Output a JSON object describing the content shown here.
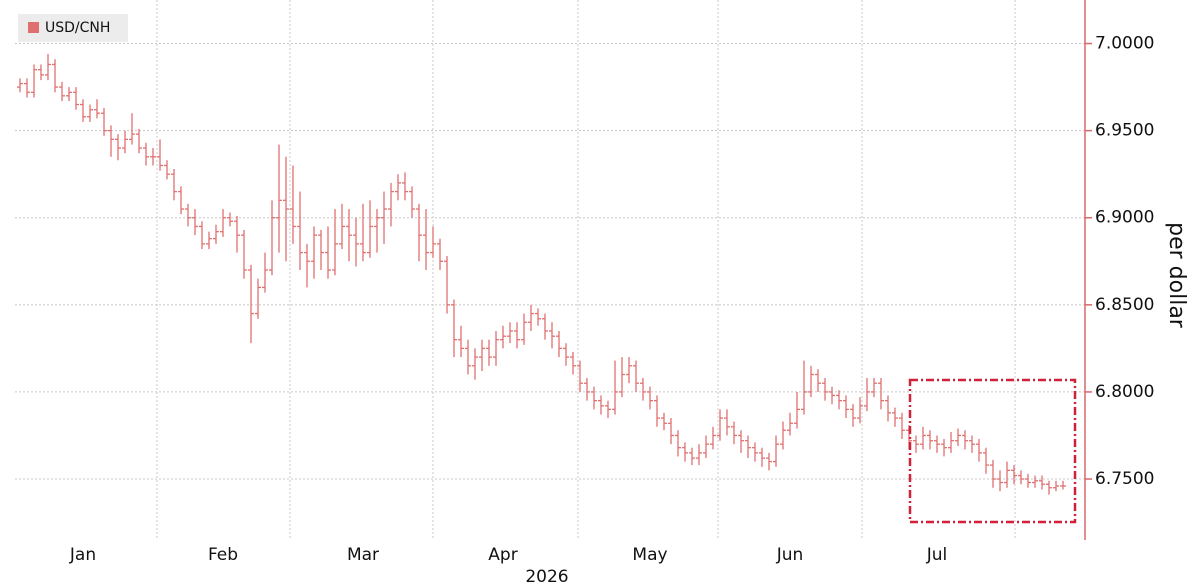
{
  "chart_data": {
    "type": "ohlc",
    "legend": "top-left",
    "x_label": "2026",
    "y_label": "per dollar",
    "ylim": [
      6.715,
      7.025
    ],
    "yticks": [
      {
        "value": 6.75,
        "label": "6.7500"
      },
      {
        "value": 6.8,
        "label": "6.8000"
      },
      {
        "value": 6.85,
        "label": "6.8500"
      },
      {
        "value": 6.9,
        "label": "6.9000"
      },
      {
        "value": 6.95,
        "label": "6.9500"
      },
      {
        "value": 7.0,
        "label": "7.0000"
      }
    ],
    "grid": true,
    "categories": [
      null,
      null,
      null,
      null,
      null,
      null,
      null,
      null,
      null,
      "Jan",
      null,
      null,
      null,
      null,
      null,
      null,
      null,
      null,
      null,
      null,
      null,
      null,
      null,
      null,
      null,
      null,
      null,
      null,
      null,
      "Feb",
      null,
      null,
      null,
      null,
      null,
      null,
      null,
      null,
      null,
      null,
      null,
      null,
      null,
      null,
      null,
      null,
      null,
      null,
      null,
      "Mar",
      null,
      null,
      null,
      null,
      null,
      null,
      null,
      null,
      null,
      null,
      null,
      null,
      null,
      null,
      null,
      null,
      null,
      null,
      null,
      "Apr",
      null,
      null,
      null,
      null,
      null,
      null,
      null,
      null,
      null,
      null,
      null,
      null,
      null,
      null,
      null,
      null,
      null,
      null,
      null,
      null,
      "May",
      null,
      null,
      null,
      null,
      null,
      null,
      null,
      null,
      null,
      null,
      null,
      null,
      null,
      null,
      null,
      null,
      null,
      null,
      null,
      "Jun",
      null,
      null,
      null,
      null,
      null,
      null,
      null,
      null,
      null,
      null,
      null,
      null,
      null,
      null,
      null,
      null,
      null,
      null,
      null,
      null,
      "Jul",
      null,
      null,
      null,
      null,
      null,
      null,
      null,
      null,
      null,
      null,
      null,
      null,
      null,
      null,
      null,
      null,
      null,
      null
    ],
    "series": [
      {
        "name": "USD/CNH",
        "color": "#e07070",
        "open": [
          6.975,
          6.977,
          6.972,
          6.985,
          6.982,
          6.988,
          6.975,
          6.97,
          6.972,
          6.965,
          6.958,
          6.962,
          6.96,
          6.95,
          6.945,
          6.94,
          6.945,
          6.948,
          6.94,
          6.935,
          6.935,
          6.93,
          6.925,
          6.915,
          6.905,
          6.9,
          6.895,
          6.885,
          6.888,
          6.892,
          6.9,
          6.898,
          6.89,
          6.87,
          6.845,
          6.86,
          6.87,
          6.9,
          6.91,
          6.905,
          6.895,
          6.88,
          6.875,
          6.89,
          6.88,
          6.87,
          6.885,
          6.895,
          6.89,
          6.885,
          6.88,
          6.895,
          6.9,
          6.905,
          6.915,
          6.92,
          6.915,
          6.905,
          6.89,
          6.88,
          6.885,
          6.875,
          6.85,
          6.83,
          6.825,
          6.815,
          6.82,
          6.825,
          6.82,
          6.83,
          6.832,
          6.835,
          6.83,
          6.84,
          6.845,
          6.842,
          6.835,
          6.832,
          6.825,
          6.82,
          6.815,
          6.805,
          6.8,
          6.795,
          6.792,
          6.79,
          6.8,
          6.81,
          6.815,
          6.805,
          6.8,
          6.795,
          6.785,
          6.782,
          6.775,
          6.768,
          6.765,
          6.762,
          6.765,
          6.77,
          6.775,
          6.785,
          6.78,
          6.775,
          6.772,
          6.768,
          6.765,
          6.762,
          6.76,
          6.77,
          6.778,
          6.782,
          6.79,
          6.8,
          6.81,
          6.805,
          6.8,
          6.798,
          6.795,
          6.79,
          6.785,
          6.792,
          6.8,
          6.805,
          6.795,
          6.788,
          6.785,
          6.778,
          6.772,
          6.77,
          6.775,
          6.772,
          6.77,
          6.768,
          6.772,
          6.775,
          6.772,
          6.77,
          6.765,
          6.758,
          6.75,
          6.748,
          6.755,
          6.752,
          6.75,
          6.748,
          6.749,
          6.747,
          6.745,
          6.746
        ],
        "high": [
          6.98,
          6.98,
          6.988,
          6.988,
          6.994,
          6.991,
          6.978,
          6.975,
          6.975,
          6.968,
          6.965,
          6.968,
          6.963,
          6.953,
          6.948,
          6.95,
          6.96,
          6.951,
          6.943,
          6.94,
          6.945,
          6.933,
          6.928,
          6.918,
          6.908,
          6.905,
          6.898,
          6.892,
          6.896,
          6.905,
          6.903,
          6.901,
          6.893,
          6.873,
          6.865,
          6.88,
          6.91,
          6.942,
          6.935,
          6.93,
          6.915,
          6.885,
          6.895,
          6.893,
          6.895,
          6.905,
          6.908,
          6.905,
          6.9,
          6.908,
          6.91,
          6.905,
          6.915,
          6.92,
          6.925,
          6.926,
          6.918,
          6.908,
          6.905,
          6.895,
          6.888,
          6.878,
          6.853,
          6.838,
          6.83,
          6.825,
          6.83,
          6.83,
          6.835,
          6.838,
          6.84,
          6.84,
          6.845,
          6.85,
          6.848,
          6.845,
          6.84,
          6.835,
          6.828,
          6.823,
          6.818,
          6.808,
          6.803,
          6.798,
          6.795,
          6.818,
          6.82,
          6.82,
          6.818,
          6.808,
          6.803,
          6.798,
          6.788,
          6.785,
          6.778,
          6.771,
          6.768,
          6.77,
          6.775,
          6.78,
          6.79,
          6.79,
          6.783,
          6.778,
          6.775,
          6.771,
          6.768,
          6.765,
          6.775,
          6.783,
          6.788,
          6.8,
          6.818,
          6.815,
          6.813,
          6.808,
          6.803,
          6.801,
          6.798,
          6.793,
          6.797,
          6.808,
          6.808,
          6.808,
          6.798,
          6.791,
          6.788,
          6.781,
          6.775,
          6.78,
          6.778,
          6.775,
          6.773,
          6.777,
          6.779,
          6.778,
          6.775,
          6.773,
          6.768,
          6.761,
          6.755,
          6.76,
          6.758,
          6.755,
          6.753,
          6.752,
          6.752,
          6.749,
          6.749,
          6.749
        ],
        "low": [
          6.972,
          6.969,
          6.969,
          6.979,
          6.979,
          6.972,
          6.967,
          6.967,
          6.962,
          6.955,
          6.955,
          6.957,
          6.947,
          6.935,
          6.933,
          6.937,
          6.942,
          6.937,
          6.93,
          6.93,
          6.927,
          6.922,
          6.91,
          6.902,
          6.895,
          6.89,
          6.882,
          6.882,
          6.885,
          6.889,
          6.895,
          6.88,
          6.865,
          6.828,
          6.842,
          6.857,
          6.867,
          6.88,
          6.875,
          6.885,
          6.87,
          6.86,
          6.865,
          6.87,
          6.865,
          6.867,
          6.882,
          6.875,
          6.872,
          6.875,
          6.877,
          6.88,
          6.885,
          6.895,
          6.91,
          6.91,
          6.9,
          6.875,
          6.87,
          6.877,
          6.87,
          6.845,
          6.82,
          6.82,
          6.81,
          6.807,
          6.812,
          6.815,
          6.815,
          6.825,
          6.828,
          6.825,
          6.827,
          6.835,
          6.838,
          6.83,
          6.825,
          6.82,
          6.815,
          6.81,
          6.8,
          6.795,
          6.79,
          6.787,
          6.785,
          6.787,
          6.797,
          6.805,
          6.8,
          6.795,
          6.79,
          6.78,
          6.778,
          6.77,
          6.763,
          6.76,
          6.758,
          6.758,
          6.762,
          6.767,
          6.772,
          6.775,
          6.77,
          6.765,
          6.762,
          6.76,
          6.757,
          6.755,
          6.757,
          6.767,
          6.775,
          6.779,
          6.787,
          6.797,
          6.8,
          6.795,
          6.793,
          6.79,
          6.785,
          6.78,
          6.782,
          6.789,
          6.797,
          6.79,
          6.783,
          6.78,
          6.773,
          6.767,
          6.765,
          6.767,
          6.767,
          6.765,
          6.763,
          6.765,
          6.769,
          6.767,
          6.765,
          6.76,
          6.753,
          6.745,
          6.743,
          6.745,
          6.747,
          6.747,
          6.745,
          6.745,
          6.744,
          6.741,
          6.743,
          6.744
        ],
        "close": [
          6.977,
          6.972,
          6.985,
          6.982,
          6.988,
          6.975,
          6.97,
          6.972,
          6.965,
          6.958,
          6.962,
          6.96,
          6.95,
          6.945,
          6.94,
          6.945,
          6.948,
          6.94,
          6.935,
          6.935,
          6.93,
          6.925,
          6.915,
          6.905,
          6.9,
          6.895,
          6.885,
          6.888,
          6.892,
          6.9,
          6.898,
          6.89,
          6.87,
          6.845,
          6.86,
          6.87,
          6.9,
          6.91,
          6.905,
          6.895,
          6.88,
          6.875,
          6.89,
          6.88,
          6.87,
          6.885,
          6.895,
          6.89,
          6.885,
          6.88,
          6.895,
          6.9,
          6.905,
          6.915,
          6.92,
          6.915,
          6.905,
          6.89,
          6.88,
          6.885,
          6.875,
          6.85,
          6.83,
          6.825,
          6.815,
          6.82,
          6.825,
          6.82,
          6.83,
          6.832,
          6.835,
          6.83,
          6.84,
          6.845,
          6.842,
          6.835,
          6.832,
          6.825,
          6.82,
          6.815,
          6.805,
          6.8,
          6.795,
          6.792,
          6.79,
          6.8,
          6.81,
          6.815,
          6.805,
          6.8,
          6.795,
          6.785,
          6.782,
          6.775,
          6.768,
          6.765,
          6.762,
          6.765,
          6.77,
          6.775,
          6.785,
          6.78,
          6.775,
          6.772,
          6.768,
          6.765,
          6.762,
          6.76,
          6.77,
          6.778,
          6.782,
          6.79,
          6.8,
          6.81,
          6.805,
          6.8,
          6.798,
          6.795,
          6.79,
          6.785,
          6.792,
          6.8,
          6.805,
          6.795,
          6.788,
          6.785,
          6.778,
          6.772,
          6.77,
          6.775,
          6.772,
          6.77,
          6.768,
          6.772,
          6.775,
          6.772,
          6.77,
          6.765,
          6.758,
          6.75,
          6.748,
          6.755,
          6.752,
          6.75,
          6.748,
          6.749,
          6.747,
          6.745,
          6.746,
          6.746
        ]
      }
    ]
  }
}
